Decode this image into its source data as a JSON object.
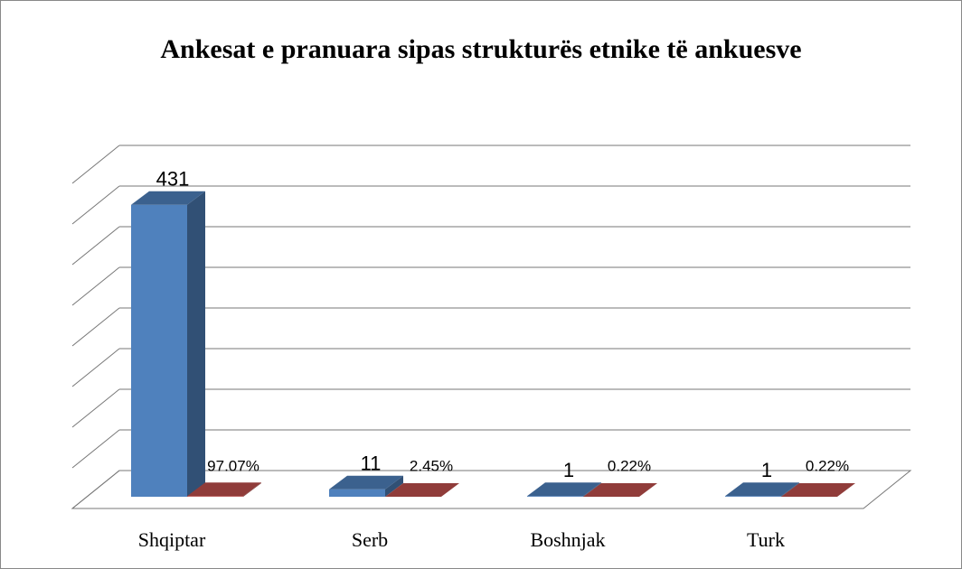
{
  "chart_data": {
    "type": "bar3d",
    "title": "Ankesat e pranuara sipas strukturës etnike të ankuesve",
    "categories": [
      "Shqiptar",
      "Serb",
      "Boshnjak",
      "Turk"
    ],
    "series": [
      {
        "color": "#4f81bd",
        "values": [
          431,
          11,
          1,
          1
        ]
      },
      {
        "color": "#c0504d",
        "values": [
          0.9707,
          0.0245,
          0.0022,
          0.0022
        ],
        "value_labels": [
          "97.07%",
          "2.45%",
          "0.22%",
          "0.22%"
        ]
      }
    ],
    "ylim": [
      0,
      480
    ],
    "yticks": [
      0,
      60,
      120,
      180,
      240,
      300,
      360,
      420,
      480
    ],
    "grid": true
  }
}
